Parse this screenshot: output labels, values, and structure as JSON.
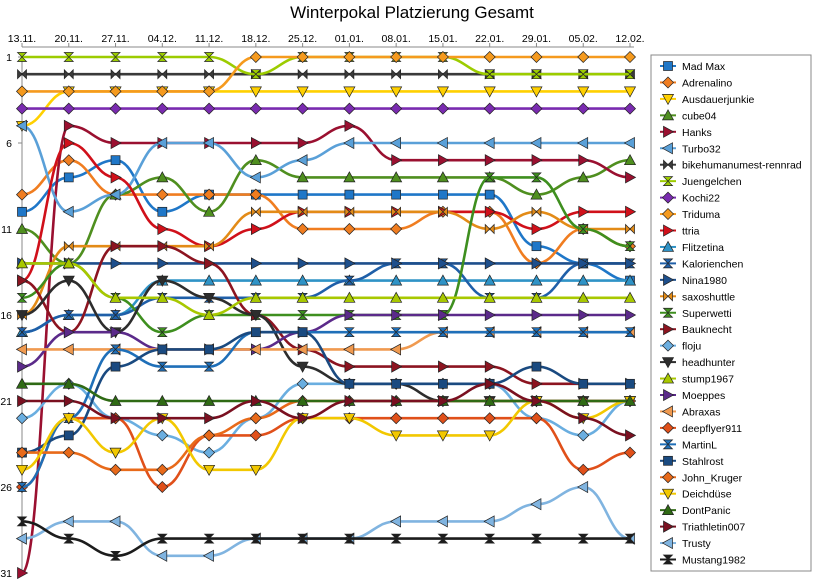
{
  "chart_data": {
    "type": "line",
    "title": "Winterpokal Platzierung Gesamt",
    "categories": [
      "13.11.",
      "20.11.",
      "27.11.",
      "04.12.",
      "11.12.",
      "18.12.",
      "25.12.",
      "01.01.",
      "08.01.",
      "15.01.",
      "22.01.",
      "29.01.",
      "05.02.",
      "12.02."
    ],
    "y_axis": {
      "ticks": [
        1,
        6,
        11,
        16,
        21,
        26,
        31
      ],
      "range": [
        1,
        31
      ],
      "reversed": true
    },
    "grid": false,
    "legend_position": "right",
    "series": [
      {
        "name": "Mad Max",
        "color": "#1f77c8",
        "marker": "square",
        "values": [
          10,
          8,
          7,
          10,
          9,
          9,
          9,
          9,
          9,
          9,
          9,
          12,
          13,
          14
        ]
      },
      {
        "name": "Adrenalino",
        "color": "#f07d20",
        "marker": "diamond",
        "values": [
          9,
          7,
          9,
          9,
          9,
          9,
          11,
          11,
          11,
          10,
          10,
          13,
          11,
          12
        ]
      },
      {
        "name": "Ausdauerjunkie",
        "color": "#ffd000",
        "marker": "tri-down",
        "values": [
          5,
          3,
          3,
          3,
          3,
          3,
          3,
          3,
          3,
          3,
          3,
          3,
          3,
          3
        ]
      },
      {
        "name": "cube04",
        "color": "#4f8f1f",
        "marker": "tri-up",
        "values": [
          11,
          13,
          9,
          8,
          10,
          7,
          8,
          8,
          8,
          8,
          8,
          9,
          8,
          7
        ]
      },
      {
        "name": "Hanks",
        "color": "#9a1030",
        "marker": "tri-right",
        "values": [
          31,
          5,
          6,
          6,
          6,
          6,
          6,
          5,
          7,
          7,
          7,
          7,
          7,
          8
        ]
      },
      {
        "name": "Turbo32",
        "color": "#5aa0d8",
        "marker": "tri-left",
        "values": [
          5,
          10,
          9,
          6,
          6,
          8,
          7,
          6,
          6,
          6,
          6,
          6,
          6,
          6
        ]
      },
      {
        "name": "bikehumanumest-rennrad",
        "color": "#3a3a3a",
        "marker": "bowtie",
        "values": [
          2,
          2,
          2,
          2,
          2,
          2,
          2,
          2,
          2,
          2,
          2,
          2,
          2,
          2
        ]
      },
      {
        "name": "Juengelchen",
        "color": "#9ccc00",
        "marker": "hourglass",
        "values": [
          1,
          1,
          1,
          1,
          1,
          2,
          1,
          1,
          1,
          1,
          2,
          2,
          2,
          2
        ]
      },
      {
        "name": "Kochi22",
        "color": "#7a2bb0",
        "marker": "diamond",
        "values": [
          4,
          4,
          4,
          4,
          4,
          4,
          4,
          4,
          4,
          4,
          4,
          4,
          4,
          4
        ]
      },
      {
        "name": "Triduma",
        "color": "#f59a1e",
        "marker": "diamond",
        "values": [
          3,
          3,
          3,
          3,
          3,
          1,
          1,
          1,
          1,
          1,
          1,
          1,
          1,
          1
        ]
      },
      {
        "name": "ttria",
        "color": "#d0101a",
        "marker": "tri-right",
        "values": [
          14,
          6,
          8,
          11,
          12,
          11,
          10,
          10,
          10,
          10,
          10,
          11,
          10,
          10
        ]
      },
      {
        "name": "Flitzetina",
        "color": "#2f93c6",
        "marker": "tri-up",
        "values": [
          17,
          16,
          16,
          14,
          14,
          14,
          14,
          14,
          14,
          14,
          14,
          14,
          14,
          14
        ]
      },
      {
        "name": "Kalorienchen",
        "color": "#1f5fa8",
        "marker": "hourglass",
        "values": [
          17,
          16,
          16,
          15,
          15,
          15,
          15,
          14,
          13,
          13,
          15,
          15,
          13,
          13
        ]
      },
      {
        "name": "Nina1980",
        "color": "#1e4f8c",
        "marker": "tri-right",
        "values": [
          13,
          13,
          13,
          13,
          13,
          13,
          13,
          13,
          13,
          13,
          13,
          13,
          13,
          13
        ]
      },
      {
        "name": "saxoshuttle",
        "color": "#e38b17",
        "marker": "bowtie",
        "values": [
          16,
          12,
          12,
          12,
          12,
          10,
          10,
          10,
          10,
          10,
          11,
          10,
          11,
          11
        ]
      },
      {
        "name": "Superwetti",
        "color": "#3e8f1f",
        "marker": "hourglass",
        "values": [
          15,
          13,
          15,
          17,
          16,
          16,
          16,
          16,
          16,
          16,
          8,
          8,
          11,
          12
        ]
      },
      {
        "name": "Bauknecht",
        "color": "#8c1420",
        "marker": "tri-right",
        "values": [
          14,
          17,
          12,
          12,
          13,
          16,
          18,
          19,
          19,
          19,
          19,
          20,
          20,
          20
        ]
      },
      {
        "name": "floju",
        "color": "#6aaee0",
        "marker": "diamond",
        "values": [
          22,
          20,
          22,
          23,
          24,
          22,
          20,
          20,
          20,
          20,
          20,
          22,
          23,
          21
        ]
      },
      {
        "name": "headhunter",
        "color": "#2d2d2d",
        "marker": "tri-down",
        "values": [
          16,
          14,
          17,
          14,
          15,
          16,
          19,
          20,
          20,
          21,
          21,
          21,
          21,
          21
        ]
      },
      {
        "name": "stump1967",
        "color": "#a8c800",
        "marker": "tri-up",
        "values": [
          13,
          13,
          15,
          15,
          16,
          15,
          15,
          15,
          15,
          15,
          15,
          15,
          15,
          15
        ]
      },
      {
        "name": "Moeppes",
        "color": "#5b2a8a",
        "marker": "tri-right",
        "values": [
          19,
          17,
          17,
          18,
          18,
          18,
          17,
          16,
          16,
          16,
          16,
          16,
          16,
          16
        ]
      },
      {
        "name": "Abraxas",
        "color": "#f09a50",
        "marker": "tri-left",
        "values": [
          18,
          18,
          18,
          18,
          18,
          18,
          18,
          18,
          18,
          17,
          17,
          17,
          17,
          17
        ]
      },
      {
        "name": "deepflyer911",
        "color": "#e0501a",
        "marker": "diamond",
        "values": [
          26,
          22,
          22,
          26,
          23,
          23,
          22,
          22,
          22,
          22,
          22,
          22,
          25,
          24
        ]
      },
      {
        "name": "MartinL",
        "color": "#1f6fb8",
        "marker": "hourglass",
        "values": [
          26,
          22,
          18,
          19,
          19,
          17,
          17,
          17,
          17,
          17,
          17,
          17,
          17,
          17
        ]
      },
      {
        "name": "Stahlrost",
        "color": "#1a4a80",
        "marker": "square",
        "values": [
          24,
          23,
          19,
          18,
          18,
          17,
          17,
          20,
          20,
          20,
          20,
          19,
          20,
          20
        ]
      },
      {
        "name": "John_Kruger",
        "color": "#e86a1a",
        "marker": "diamond",
        "values": [
          24,
          24,
          25,
          25,
          23,
          22,
          21,
          21,
          21,
          21,
          21,
          21,
          21,
          21
        ]
      },
      {
        "name": "Deichdüse",
        "color": "#f2c800",
        "marker": "tri-down",
        "values": [
          25,
          22,
          24,
          22,
          25,
          25,
          22,
          22,
          23,
          23,
          23,
          21,
          22,
          21
        ]
      },
      {
        "name": "DontPanic",
        "color": "#2f6a14",
        "marker": "tri-up",
        "values": [
          20,
          20,
          21,
          21,
          21,
          21,
          21,
          21,
          21,
          21,
          21,
          21,
          21,
          21
        ]
      },
      {
        "name": "Triathletin007",
        "color": "#7a1020",
        "marker": "tri-right",
        "values": [
          21,
          21,
          22,
          22,
          22,
          21,
          22,
          21,
          21,
          21,
          20,
          21,
          22,
          23
        ]
      },
      {
        "name": "Trusty",
        "color": "#80b4e0",
        "marker": "tri-left",
        "values": [
          29,
          28,
          28,
          30,
          30,
          29,
          29,
          29,
          28,
          28,
          28,
          27,
          26,
          29
        ]
      },
      {
        "name": "Mustang1982",
        "color": "#1c1c1c",
        "marker": "hourglass",
        "values": [
          28,
          29,
          30,
          29,
          29,
          29,
          29,
          29,
          29,
          29,
          29,
          29,
          29,
          29
        ]
      }
    ]
  }
}
